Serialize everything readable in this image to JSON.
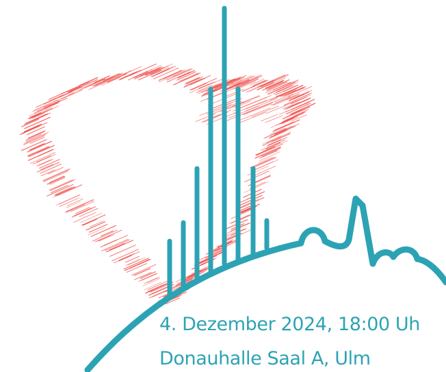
{
  "event": {
    "date_time": "4. Dezember 2024, 18:00 Uh",
    "venue": "Donauhalle Saal A, Ulm"
  },
  "logo": {
    "heart_icon": "sketched-heart-icon",
    "skyline_icon": "ulm-minster-skyline-icon",
    "pulse_icon": "heartbeat-pulse-icon"
  },
  "colors": {
    "teal": "#2ca3b4",
    "heart_red": "#f0534f",
    "text": "#2ca3b4"
  }
}
